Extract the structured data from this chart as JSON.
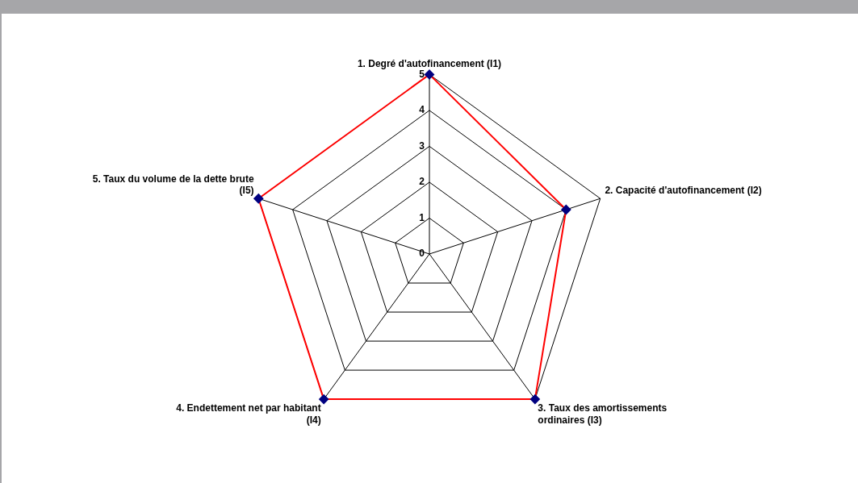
{
  "chart_data": {
    "type": "radar",
    "categories": [
      "1. Degré d'autofinancement (I1)",
      "2. Capacité d'autofinancement (I2)",
      "3. Taux des amortissements ordinaires (I3)",
      "4. Endettement net par habitant (I4)",
      "5. Taux du volume de la dette brute (I5)"
    ],
    "series": [
      {
        "color": "#ff0000",
        "values": [
          5,
          4,
          5,
          5,
          5
        ]
      }
    ],
    "ylim": [
      0,
      5
    ],
    "yticks": [
      0,
      1,
      2,
      3,
      4,
      5
    ],
    "grid": true,
    "legend": false,
    "marker": "diamond",
    "line_style": "solid"
  }
}
